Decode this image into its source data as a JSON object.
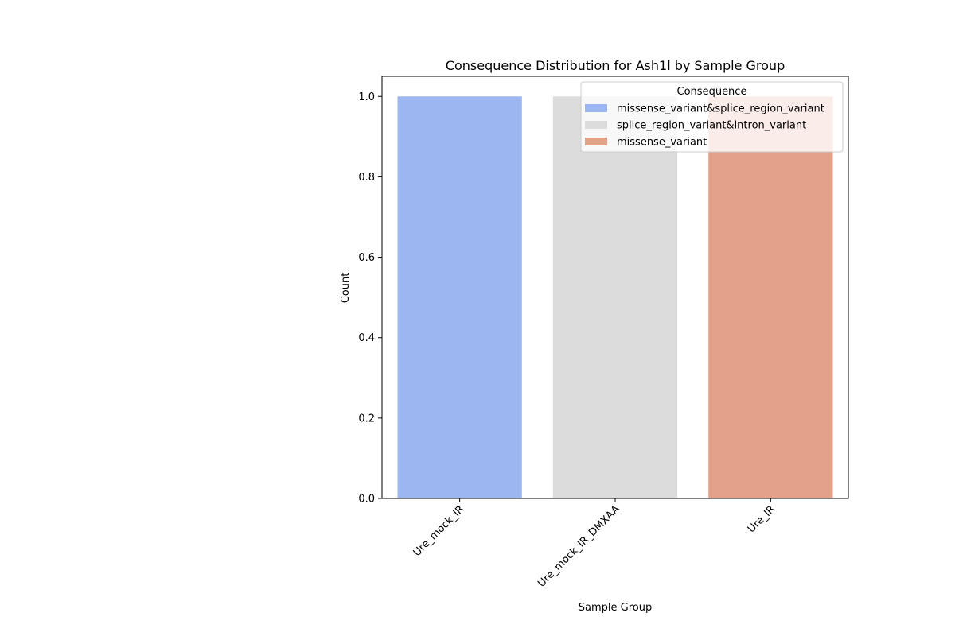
{
  "chart_data": {
    "type": "bar",
    "title": "Consequence Distribution for Ash1l by Sample Group",
    "xlabel": "Sample Group",
    "ylabel": "Count",
    "ylim": [
      0,
      1.05
    ],
    "yticks": [
      "0.0",
      "0.2",
      "0.4",
      "0.6",
      "0.8",
      "1.0"
    ],
    "categories": [
      "Ure_mock_IR",
      "Ure_mock_IR_DMXAA",
      "Ure_IR"
    ],
    "legend": {
      "title": "Consequence",
      "placement": "top-right",
      "entries": [
        {
          "label": "missense_variant&splice_region_variant",
          "color": "#9bb6f0"
        },
        {
          "label": "splice_region_variant&intron_variant",
          "color": "#dcdcdc"
        },
        {
          "label": "missense_variant",
          "color": "#e4a18a"
        }
      ]
    },
    "bars": [
      {
        "category": "Ure_mock_IR",
        "series": "missense_variant&splice_region_variant",
        "value": 1.0
      },
      {
        "category": "Ure_mock_IR_DMXAA",
        "series": "splice_region_variant&intron_variant",
        "value": 1.0
      },
      {
        "category": "Ure_IR",
        "series": "missense_variant",
        "value": 1.0
      }
    ]
  }
}
